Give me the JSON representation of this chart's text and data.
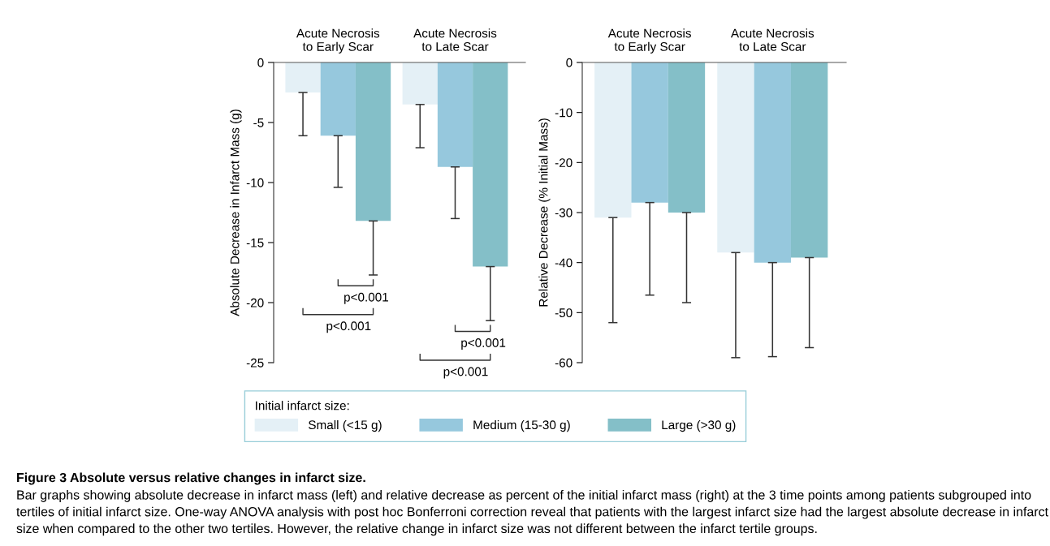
{
  "chart_data": [
    {
      "type": "bar",
      "ylabel": "Absolute Decrease in Infarct Mass (g)",
      "categories": [
        "Acute Necrosis\nto Early Scar",
        "Acute Necrosis\nto Late Scar"
      ],
      "ylim": [
        -25,
        0
      ],
      "yticks": [
        0,
        -5,
        -10,
        -15,
        -20,
        -25
      ],
      "legend": "bottom",
      "legend_title": "Initial infarct size:",
      "series": [
        {
          "name": "Small (<15 g)",
          "color": "#e4f0f6",
          "values": [
            -2.5,
            -3.5
          ],
          "errors": [
            [
              -6.1,
              -2.5
            ],
            [
              -7.1,
              -3.5
            ]
          ]
        },
        {
          "name": "Medium (15-30 g)",
          "color": "#96c8dd",
          "values": [
            -6.1,
            -8.7
          ],
          "errors": [
            [
              -10.4,
              -6.1
            ],
            [
              -13.0,
              -8.7
            ]
          ]
        },
        {
          "name": "Large (>30 g)",
          "color": "#84bfc8",
          "values": [
            -13.2,
            -17.0
          ],
          "errors": [
            [
              -17.7,
              -13.2
            ],
            [
              -21.5,
              -17.0
            ]
          ]
        }
      ],
      "annotations": [
        "p<0.001",
        "p<0.001",
        "p<0.001",
        "p<0.001",
        "Figure 3 Absolute versus relative changes in infarct size.",
        "Bar graphs showing absolute decrease in infarct mass (left) and relative decrease as percent of the initial infarct mass (right) at the 3 time points among patients subgrouped into tertiles of initial infarct size. One-way ANOVA analysis with post hoc Bonferroni correction reveal that patients with the largest infarct size had the largest absolute decrease in infarct size when compared to the other two tertiles. However, the relative change in infarct size was not different between the infarct tertile groups."
      ]
    },
    {
      "type": "bar",
      "ylabel": "Relative Decrease (% Initial Mass)",
      "categories": [
        "Acute Necrosis\nto Early Scar",
        "Acute Necrosis\nto Late Scar"
      ],
      "ylim": [
        -60,
        0
      ],
      "yticks": [
        0,
        -10,
        -20,
        -30,
        -40,
        -50,
        -60
      ],
      "series": [
        {
          "color": "#e4f0f6",
          "values": [
            -31,
            -38
          ],
          "errors": [
            [
              -52,
              -31
            ],
            [
              -59,
              -38
            ]
          ]
        },
        {
          "color": "#96c8dd",
          "values": [
            -28,
            -40
          ],
          "errors": [
            [
              -46.5,
              -28
            ],
            [
              -58.8,
              -40
            ]
          ]
        },
        {
          "color": "#84bfc8",
          "values": [
            -30,
            -39
          ],
          "errors": [
            [
              -48,
              -30
            ],
            [
              -57,
              -39
            ]
          ]
        }
      ]
    }
  ]
}
